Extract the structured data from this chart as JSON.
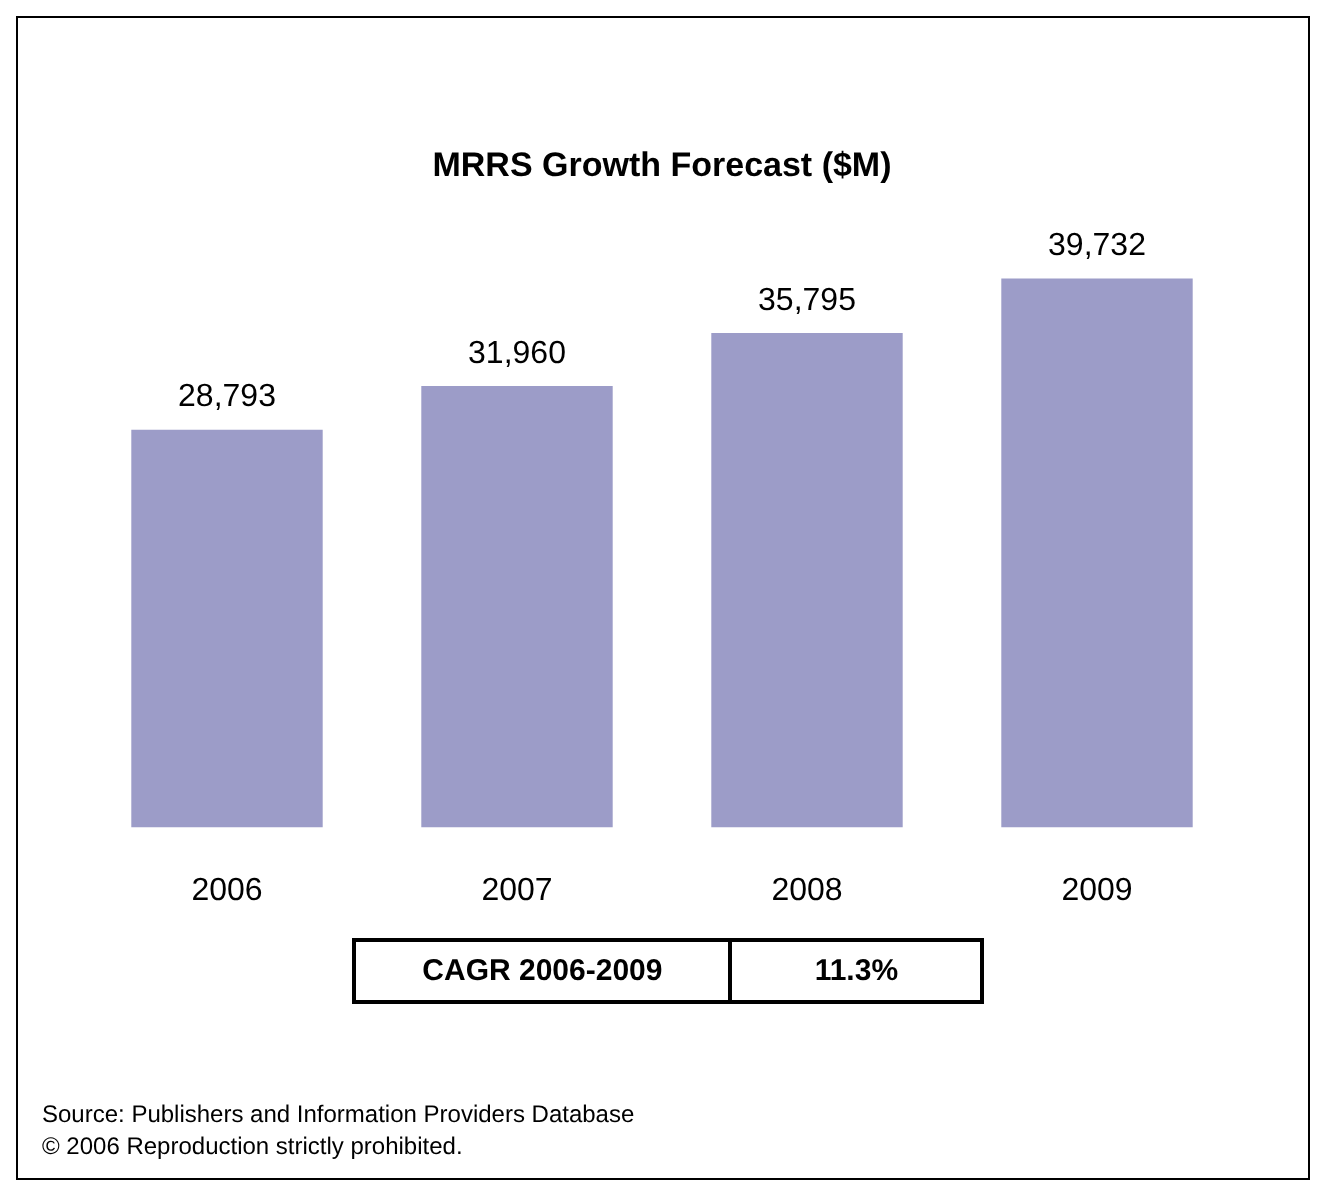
{
  "chart_data": {
    "type": "bar",
    "title": "MRRS Growth Forecast ($M)",
    "categories": [
      "2006",
      "2007",
      "2008",
      "2009"
    ],
    "values": [
      28793,
      31960,
      35795,
      39732
    ],
    "color": "#9c9cc8",
    "value_labels": [
      "28,793",
      "31,960",
      "35,795",
      "39,732"
    ],
    "grid": false,
    "legend": false,
    "annotations": [
      "CAGR 2006-2009",
      "11.3%",
      "Source: Publishers and Information Providers Database",
      "© 2006 Reproduction strictly prohibited."
    ]
  }
}
